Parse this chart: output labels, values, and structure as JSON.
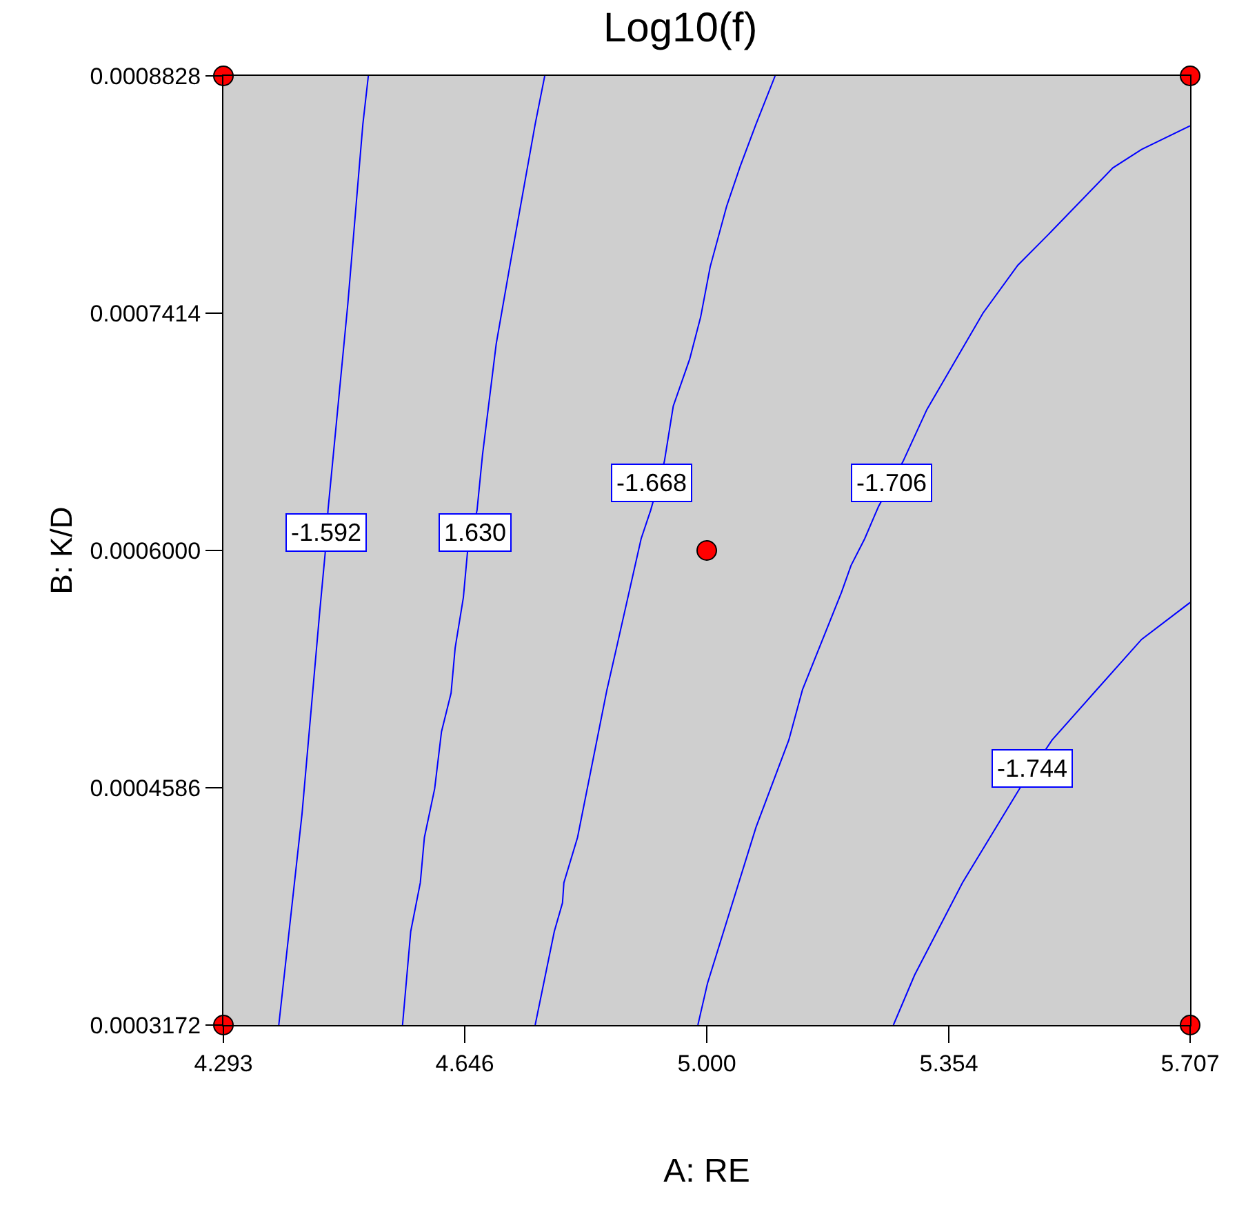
{
  "chart_data": {
    "type": "line",
    "title": "Log10(f)",
    "xlabel": "A: RE",
    "ylabel": "B: K/D",
    "xlim": [
      4.293,
      5.707
    ],
    "ylim": [
      0.0003172,
      0.0008828
    ],
    "xticks": [
      {
        "value": 4.293,
        "label": "4.293"
      },
      {
        "value": 4.646,
        "label": "4.646"
      },
      {
        "value": 5.0,
        "label": "5.000"
      },
      {
        "value": 5.354,
        "label": "5.354"
      },
      {
        "value": 5.707,
        "label": "5.707"
      }
    ],
    "yticks": [
      {
        "value": 0.0003172,
        "label": "0.0003172"
      },
      {
        "value": 0.0004586,
        "label": "0.0004586"
      },
      {
        "value": 0.0006,
        "label": "0.0006000"
      },
      {
        "value": 0.0007414,
        "label": "0.0007414"
      },
      {
        "value": 0.0008828,
        "label": "0.0008828"
      }
    ],
    "grid": false,
    "line_style": "solid",
    "series": [
      {
        "color": "#0000ff",
        "x": [
          4.374,
          4.408,
          4.434,
          4.442,
          4.446,
          4.475,
          4.497,
          4.505
        ],
        "values": [
          0.0003172,
          0.000443,
          0.000564,
          0.000599,
          0.000624,
          0.000747,
          0.000854,
          0.0008828
        ]
      },
      {
        "color": "#0000ff",
        "x": [
          4.555,
          4.567,
          4.581,
          4.587,
          4.602,
          4.612,
          4.626,
          4.632,
          4.644,
          4.65,
          4.664,
          4.672,
          4.692,
          4.713,
          4.749,
          4.763
        ],
        "values": [
          0.0003172,
          0.000373,
          0.000402,
          0.000429,
          0.000458,
          0.000492,
          0.000515,
          0.000542,
          0.000572,
          0.000599,
          0.000624,
          0.000657,
          0.000723,
          0.000772,
          0.000854,
          0.0008828
        ]
      },
      {
        "color": "#0000ff",
        "x": [
          4.749,
          4.777,
          4.789,
          4.791,
          4.811,
          4.854,
          4.868,
          4.904,
          4.918,
          4.938,
          4.951,
          4.975,
          4.991,
          5.005,
          5.029,
          5.049,
          5.072,
          5.1
        ],
        "values": [
          0.0003172,
          0.000373,
          0.00039,
          0.000402,
          0.000429,
          0.000517,
          0.000542,
          0.000607,
          0.000624,
          0.000653,
          0.000686,
          0.000714,
          0.000739,
          0.000769,
          0.000805,
          0.000829,
          0.000854,
          0.0008828
        ]
      },
      {
        "color": "#0000ff",
        "x": [
          4.987,
          5.001,
          5.072,
          5.12,
          5.14,
          5.197,
          5.211,
          5.231,
          5.251,
          5.287,
          5.322,
          5.404,
          5.455,
          5.499,
          5.594,
          5.636,
          5.707
        ],
        "values": [
          0.0003172,
          0.000342,
          0.000435,
          0.000487,
          0.000517,
          0.000575,
          0.000591,
          0.000607,
          0.000626,
          0.000653,
          0.000684,
          0.0007414,
          0.00077,
          0.000788,
          0.000828,
          0.000839,
          0.000853
        ]
      },
      {
        "color": "#0000ff",
        "x": [
          5.273,
          5.304,
          5.374,
          5.459,
          5.505,
          5.566,
          5.636,
          5.707
        ],
        "values": [
          0.0003172,
          0.000347,
          0.000402,
          0.000459,
          0.000487,
          0.000515,
          0.000547,
          0.000569
        ]
      },
      {
        "type": "scatter",
        "color": "#ff0000",
        "marker": "circle",
        "x": [
          4.293,
          5.707,
          4.293,
          5.707,
          5.0
        ],
        "values": [
          0.0008828,
          0.0008828,
          0.0003172,
          0.0003172,
          0.0006
        ]
      }
    ],
    "annotations": [
      {
        "text": "-1.592",
        "x": 4.444,
        "y": 0.000611
      },
      {
        "text": "1.630",
        "x": 4.662,
        "y": 0.000611
      },
      {
        "text": "-1.668",
        "x": 4.92,
        "y": 0.00064
      },
      {
        "text": "-1.706",
        "x": 5.27,
        "y": 0.00064
      },
      {
        "text": "-1.744",
        "x": 5.477,
        "y": 0.00047
      }
    ]
  }
}
